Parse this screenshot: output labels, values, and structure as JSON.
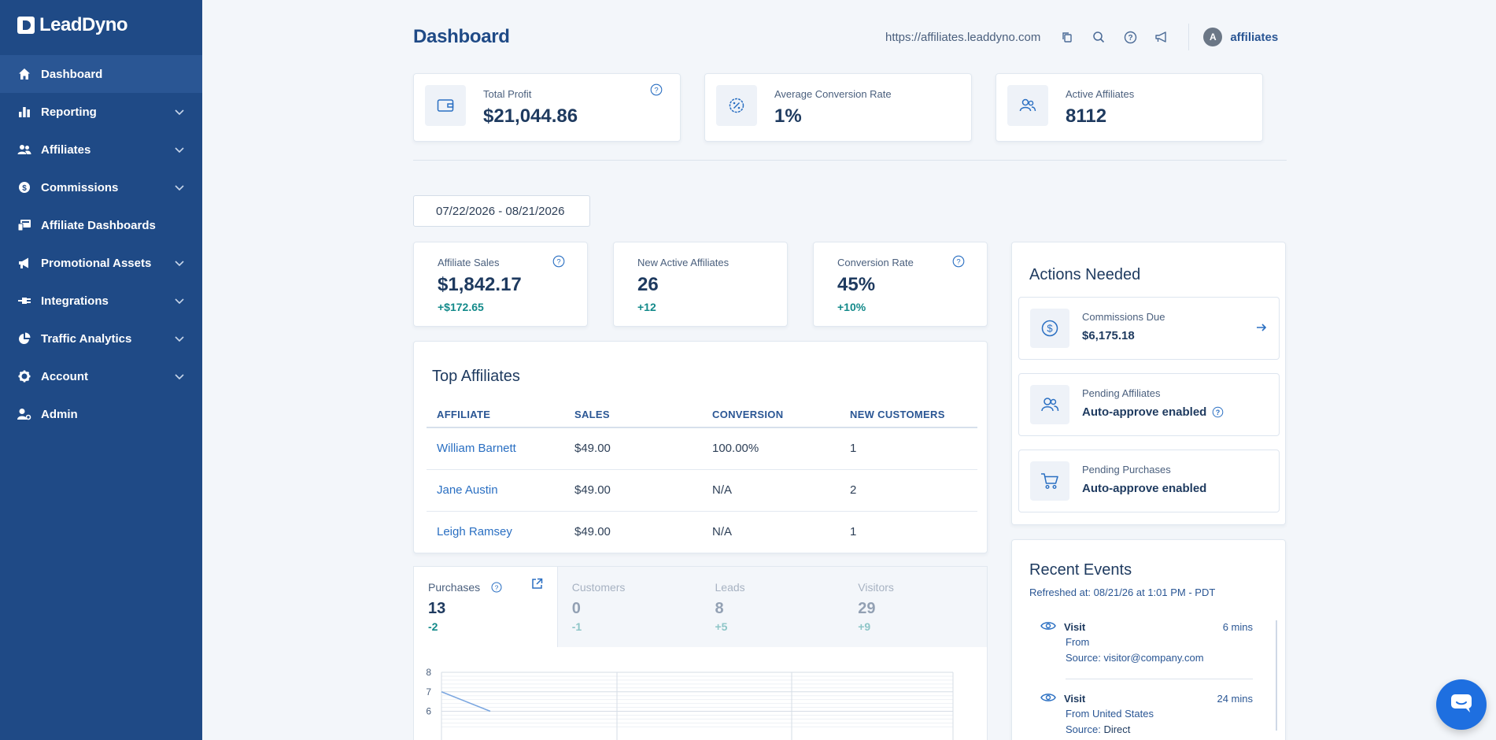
{
  "brand": {
    "name": "LeadDyno"
  },
  "sidebar": {
    "items": [
      {
        "label": "Dashboard",
        "icon": "home-icon",
        "active": true
      },
      {
        "label": "Reporting",
        "icon": "bar-chart-icon",
        "expandable": true
      },
      {
        "label": "Affiliates",
        "icon": "users-icon",
        "expandable": true
      },
      {
        "label": "Commissions",
        "icon": "dollar-circle-icon",
        "expandable": true
      },
      {
        "label": "Affiliate Dashboards",
        "icon": "dashboard-screen-icon"
      },
      {
        "label": "Promotional Assets",
        "icon": "megaphone-icon",
        "expandable": true
      },
      {
        "label": "Integrations",
        "icon": "plug-icon",
        "expandable": true
      },
      {
        "label": "Traffic Analytics",
        "icon": "pie-chart-icon",
        "expandable": true
      },
      {
        "label": "Account",
        "icon": "gear-icon",
        "expandable": true
      },
      {
        "label": "Admin",
        "icon": "user-gear-icon"
      }
    ]
  },
  "header": {
    "title": "Dashboard",
    "url": "https://affiliates.leaddyno.com",
    "avatar_initial": "A",
    "user": "affiliates"
  },
  "kpis": [
    {
      "label": "Total Profit",
      "value": "$21,044.86",
      "icon": "wallet-icon",
      "help": true
    },
    {
      "label": "Average Conversion Rate",
      "value": "1%",
      "icon": "percent-badge-icon"
    },
    {
      "label": "Active Affiliates",
      "value": "8112",
      "icon": "users-icon"
    }
  ],
  "date_range": "07/22/2026 - 08/21/2026",
  "stats": [
    {
      "label": "Affiliate Sales",
      "value": "$1,842.17",
      "delta": "+$172.65",
      "help": true
    },
    {
      "label": "New Active Affiliates",
      "value": "26",
      "delta": "+12"
    },
    {
      "label": "Conversion Rate",
      "value": "45%",
      "delta": "+10%",
      "help": true
    }
  ],
  "top_affiliates": {
    "title": "Top Affiliates",
    "columns": [
      "AFFILIATE",
      "SALES",
      "CONVERSION",
      "NEW CUSTOMERS"
    ],
    "rows": [
      [
        "William Barnett",
        "$49.00",
        "100.00%",
        "1"
      ],
      [
        "Jane Austin",
        "$49.00",
        "N/A",
        "2"
      ],
      [
        "Leigh Ramsey",
        "$49.00",
        "N/A",
        "1"
      ]
    ]
  },
  "tabs": [
    {
      "label": "Purchases",
      "value": "13",
      "delta": "-2",
      "active": true
    },
    {
      "label": "Customers",
      "value": "0",
      "delta": "-1"
    },
    {
      "label": "Leads",
      "value": "8",
      "delta": "+5"
    },
    {
      "label": "Visitors",
      "value": "29",
      "delta": "+9"
    }
  ],
  "chart_data": {
    "type": "line",
    "yticks": [
      "8",
      "7",
      "6"
    ],
    "ylim": [
      6,
      8
    ],
    "series": [
      {
        "values": [
          7,
          6
        ]
      }
    ]
  },
  "actions_needed": {
    "title": "Actions Needed",
    "items": [
      {
        "label": "Commissions Due",
        "value": "$6,175.18",
        "icon": "dollar-circle-icon",
        "arrow": true
      },
      {
        "label": "Pending Affiliates",
        "value": "Auto-approve enabled",
        "icon": "users-icon",
        "help": true
      },
      {
        "label": "Pending Purchases",
        "value": "Auto-approve enabled",
        "icon": "cart-icon"
      }
    ]
  },
  "recent_events": {
    "title": "Recent Events",
    "refreshed": "Refreshed at: 08/21/26 at 1:01 PM - PDT",
    "items": [
      {
        "type": "Visit",
        "time": "6 mins",
        "from": "From",
        "source_label": "Source:",
        "source": "visitor@company.com"
      },
      {
        "type": "Visit",
        "time": "24 mins",
        "from": "From United States",
        "source_label": "Source:",
        "source": "Direct"
      }
    ]
  },
  "colors": {
    "sidebar": "#1f4a86",
    "accent": "#2a6fc2",
    "positive": "#138a8a",
    "chat": "#1e6fe0"
  }
}
